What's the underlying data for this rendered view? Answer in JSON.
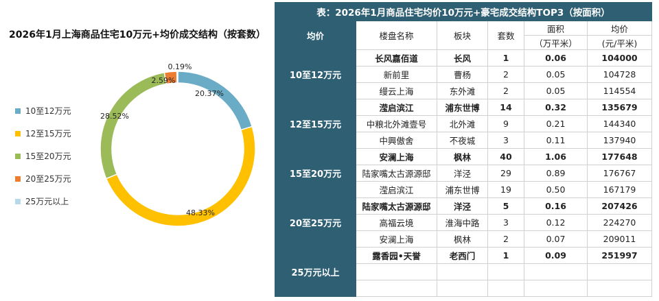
{
  "chart_data": {
    "type": "pie",
    "title": "2026年1月上海商品住宅10万元+均价成交结构（按套数）",
    "categories": [
      "10至12万元",
      "12至15万元",
      "15至20万元",
      "20至25万元",
      "25万元以上"
    ],
    "values": [
      20.37,
      48.33,
      28.52,
      2.59,
      0.19
    ],
    "labels": [
      "20.37%",
      "48.33%",
      "28.52%",
      "2.59%",
      "0.19%"
    ],
    "colors": [
      "#6aabc5",
      "#ffc000",
      "#9bbb59",
      "#ed7d31",
      "#b7d9e8"
    ],
    "legend_position": "left",
    "donut": true
  },
  "table": {
    "title": "表：2026年1月商品住宅均价10万元+豪宅成交结构TOP3（按面积）",
    "headers": {
      "range": "均价",
      "name": "楼盘名称",
      "district": "板块",
      "units": "套数",
      "area": "面积",
      "area_unit": "（万平米）",
      "price": "均价",
      "price_unit": "(元/平米)"
    },
    "groups": [
      {
        "range": "10至12万元",
        "rows": [
          {
            "name": "长风嘉佰道",
            "district": "长风",
            "units": "1",
            "area": "0.06",
            "price": "104000",
            "bold": true
          },
          {
            "name": "新前里",
            "district": "曹杨",
            "units": "2",
            "area": "0.05",
            "price": "104728",
            "bold": false
          },
          {
            "name": "缦云上海",
            "district": "东外滩",
            "units": "2",
            "area": "0.05",
            "price": "114554",
            "bold": false
          }
        ]
      },
      {
        "range": "12至15万元",
        "rows": [
          {
            "name": "滢启滨江",
            "district": "浦东世博",
            "units": "14",
            "area": "0.32",
            "price": "135679",
            "bold": true
          },
          {
            "name": "中粮北外滩壹号",
            "district": "北外滩",
            "units": "9",
            "area": "0.21",
            "price": "144340",
            "bold": false
          },
          {
            "name": "中興傲舍",
            "district": "不夜城",
            "units": "3",
            "area": "0.11",
            "price": "137940",
            "bold": false
          }
        ]
      },
      {
        "range": "15至20万元",
        "rows": [
          {
            "name": "安澜上海",
            "district": "枫林",
            "units": "40",
            "area": "1.06",
            "price": "177648",
            "bold": true
          },
          {
            "name": "陆家嘴太古源源邸",
            "district": "洋泾",
            "units": "29",
            "area": "0.89",
            "price": "176767",
            "bold": false
          },
          {
            "name": "滢启滨江",
            "district": "浦东世博",
            "units": "19",
            "area": "0.50",
            "price": "167179",
            "bold": false
          }
        ]
      },
      {
        "range": "20至25万元",
        "rows": [
          {
            "name": "陆家嘴太古源源邸",
            "district": "洋泾",
            "units": "5",
            "area": "0.16",
            "price": "207426",
            "bold": true
          },
          {
            "name": "高福云境",
            "district": "淮海中路",
            "units": "3",
            "area": "0.12",
            "price": "224270",
            "bold": false
          },
          {
            "name": "安澜上海",
            "district": "枫林",
            "units": "2",
            "area": "0.07",
            "price": "209011",
            "bold": false
          }
        ]
      },
      {
        "range": "25万元以上",
        "rows": [
          {
            "name": "露香园•天誉",
            "district": "老西门",
            "units": "1",
            "area": "0.09",
            "price": "251997",
            "bold": true
          },
          {
            "name": "",
            "district": "",
            "units": "",
            "area": "",
            "price": "",
            "bold": false
          },
          {
            "name": "",
            "district": "",
            "units": "",
            "area": "",
            "price": "",
            "bold": false
          }
        ]
      }
    ]
  }
}
